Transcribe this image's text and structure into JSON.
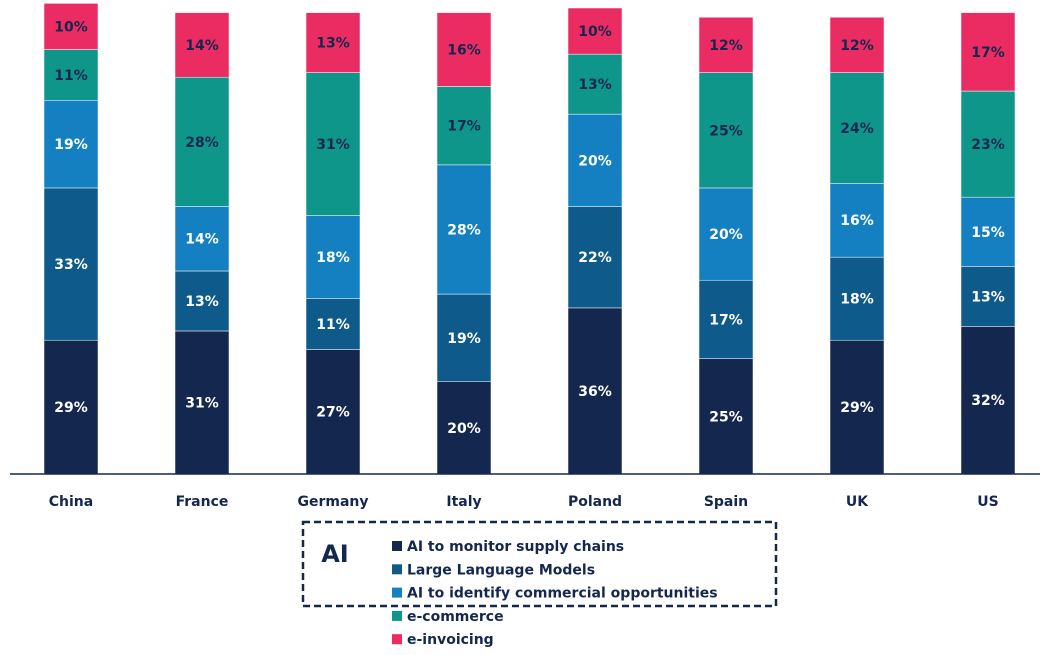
{
  "chart_data": {
    "type": "stacked_bar",
    "categories": [
      "China",
      "France",
      "Germany",
      "Italy",
      "Poland",
      "Spain",
      "UK",
      "US"
    ],
    "series": [
      {
        "name": "AI to monitor supply chains",
        "color": "#14284f",
        "label_color": "#ffffff",
        "values": [
          29,
          31,
          27,
          20,
          36,
          25,
          29,
          32
        ],
        "value_labels": [
          "29%",
          "31%",
          "27%",
          "20%",
          "36%",
          "25%",
          "29%",
          "32%"
        ]
      },
      {
        "name": "Large Language Models",
        "color": "#0e5a8a",
        "label_color": "#ffffff",
        "values": [
          33,
          13,
          11,
          19,
          22,
          17,
          18,
          13
        ],
        "value_labels": [
          "33%",
          "13%",
          "11%",
          "19%",
          "22%",
          "17%",
          "18%",
          "13%"
        ]
      },
      {
        "name": "AI to identify commercial opportunities",
        "color": "#1480c2",
        "label_color": "#ffffff",
        "values": [
          19,
          14,
          18,
          28,
          20,
          20,
          16,
          15
        ],
        "value_labels": [
          "19%",
          "14%",
          "18%",
          "28%",
          "20%",
          "20%",
          "16%",
          "15%"
        ]
      },
      {
        "name": "e-commerce",
        "color": "#0f968a",
        "label_color": "#14284f",
        "values": [
          11,
          28,
          31,
          17,
          13,
          25,
          24,
          23
        ],
        "value_labels": [
          "11%",
          "28%",
          "31%",
          "17%",
          "13%",
          "25%",
          "24%",
          "23%"
        ]
      },
      {
        "name": "e-invoicing",
        "color": "#ea2c62",
        "label_color": "#14284f",
        "values": [
          10,
          14,
          13,
          16,
          10,
          12,
          12,
          17
        ],
        "value_labels": [
          "10%",
          "14%",
          "13%",
          "16%",
          "10%",
          "12%",
          "12%",
          "17%"
        ]
      }
    ],
    "legend_group": "AI",
    "ylim": [
      0,
      101
    ]
  }
}
